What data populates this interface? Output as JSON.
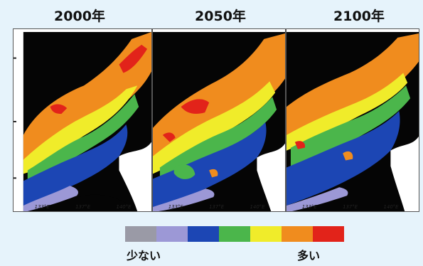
{
  "figure": {
    "panels": [
      {
        "year_label": "2000年"
      },
      {
        "year_label": "2050年"
      },
      {
        "year_label": "2100年"
      }
    ],
    "axis_tick_labels": [
      "133°E",
      "137°E",
      "140°E"
    ],
    "legend": {
      "low_label": "少ない",
      "high_label": "多い",
      "colors": [
        "#9a9aa6",
        "#9c98d6",
        "#1c46b4",
        "#4bb64b",
        "#f0ec2a",
        "#f08c1e",
        "#e2231a"
      ]
    }
  }
}
